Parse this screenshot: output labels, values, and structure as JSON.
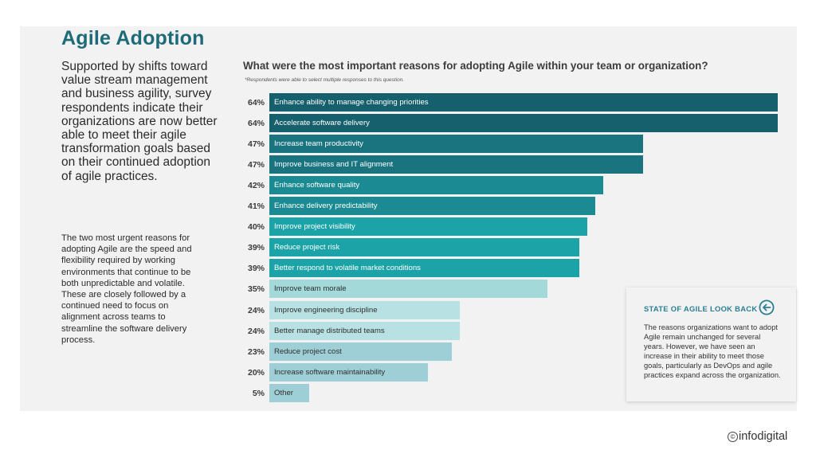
{
  "page": {
    "title": "Agile Adoption",
    "lead": "Supported by shifts toward value stream management and business agility, survey respondents indicate their organizations are now better able to meet their agile transformation goals based on their continued adoption of agile practices.",
    "body": "The two most urgent reasons for adopting Agile are the speed and flexibility required by working environments that continue to be both unpredictable and volatile. These are closely followed by a continued need to focus on alignment across teams to streamline the software delivery process."
  },
  "chart": {
    "question": "What were the most important reasons for adopting Agile within your team or organization?",
    "footnote": "*Respondents were able to select multiple responses to this question."
  },
  "chart_data": {
    "type": "bar",
    "orientation": "horizontal",
    "title": "What were the most important reasons for adopting Agile within your team or organization?",
    "unit": "%",
    "xlim": [
      0,
      64
    ],
    "categories": [
      "Enhance ability to manage changing priorities",
      "Accelerate software delivery",
      "Increase team productivity",
      "Improve business and IT alignment",
      "Enhance software quality",
      "Enhance delivery predictability",
      "Improve project visibility",
      "Reduce project risk",
      "Better respond to volatile market conditions",
      "Improve team morale",
      "Improve engineering discipline",
      "Better manage distributed teams",
      "Reduce project cost",
      "Increase software maintainability",
      "Other"
    ],
    "values": [
      64,
      64,
      47,
      47,
      42,
      41,
      40,
      39,
      39,
      35,
      24,
      24,
      23,
      20,
      5
    ],
    "labels": [
      "64%",
      "64%",
      "47%",
      "47%",
      "42%",
      "41%",
      "40%",
      "39%",
      "39%",
      "35%",
      "24%",
      "24%",
      "23%",
      "20%",
      "5%"
    ],
    "colors": [
      "#15606c",
      "#15606c",
      "#1a7480",
      "#1a7480",
      "#1b8a92",
      "#1b8a92",
      "#1ca3a7",
      "#1ca3a7",
      "#1ca3a7",
      "#a4d9d9",
      "#b8e1e4",
      "#b8e1e4",
      "#9fcfd6",
      "#9fcfd6",
      "#9fcfd6"
    ],
    "label_colors": [
      "#ffffff",
      "#ffffff",
      "#ffffff",
      "#ffffff",
      "#ffffff",
      "#ffffff",
      "#ffffff",
      "#ffffff",
      "#ffffff",
      "#2e2e2e",
      "#2e2e2e",
      "#2e2e2e",
      "#2e2e2e",
      "#2e2e2e",
      "#2e2e2e"
    ]
  },
  "lookback": {
    "title": "STATE OF AGILE LOOK BACK",
    "icon": "arrow-left-circle-icon",
    "text": "The reasons organizations want to adopt Agile remain unchanged for several years. However, we have seen an increase in their ability to meet those goals, particularly as DevOps and agile practices expand across the organization."
  },
  "logo": {
    "mark": "©",
    "text": "infodigital"
  }
}
